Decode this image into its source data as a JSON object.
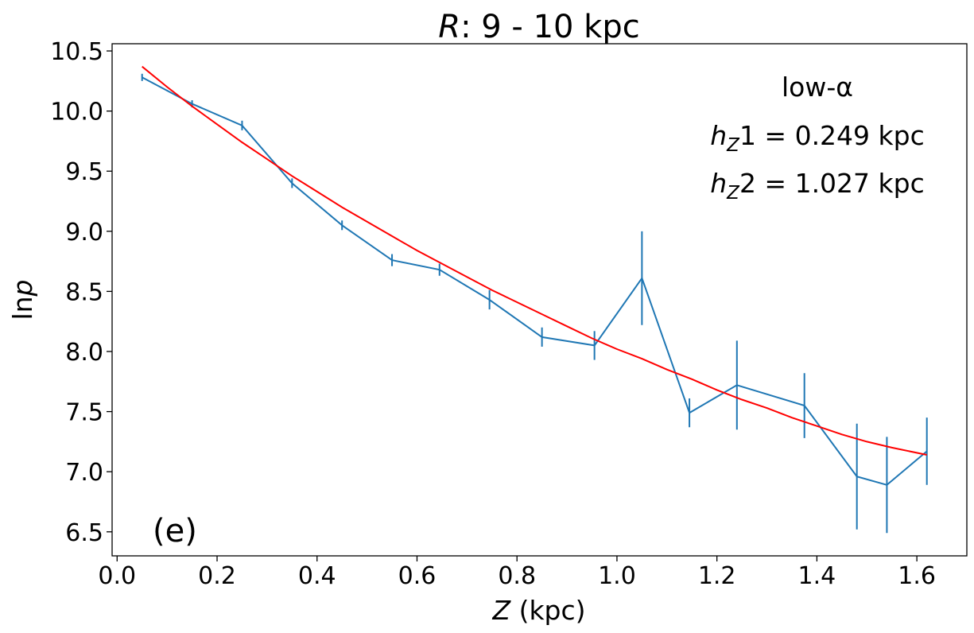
{
  "chart_data": {
    "type": "line",
    "title_var": "R",
    "title_rest": ": 9 - 10 kpc",
    "xlabel_var": "Z",
    "xlabel_rest": " (kpc)",
    "ylabel_prefix": "ln",
    "ylabel_var": "p",
    "xlim": [
      -0.01,
      1.7
    ],
    "ylim": [
      6.3,
      10.56
    ],
    "xticks": [
      0.0,
      0.2,
      0.4,
      0.6,
      0.8,
      1.0,
      1.2,
      1.4,
      1.6
    ],
    "xtick_labels": [
      "0.0",
      "0.2",
      "0.4",
      "0.6",
      "0.8",
      "1.0",
      "1.2",
      "1.4",
      "1.6"
    ],
    "yticks": [
      6.5,
      7.0,
      7.5,
      8.0,
      8.5,
      9.0,
      9.5,
      10.0,
      10.5
    ],
    "ytick_labels": [
      "6.5",
      "7.0",
      "7.5",
      "8.0",
      "8.5",
      "9.0",
      "9.5",
      "10.0",
      "10.5"
    ],
    "panel_label": "(e)",
    "annotation": {
      "population": "low-α",
      "h1_sym": "h",
      "h1_sub": "Z",
      "h1_num": "1",
      "h1_value": " = 0.249 kpc",
      "h2_sym": "h",
      "h2_sub": "Z",
      "h2_num": "2",
      "h2_value": " = 1.027 kpc"
    },
    "series": [
      {
        "name": "data",
        "color": "#1f77b4",
        "x": [
          0.05,
          0.15,
          0.25,
          0.35,
          0.45,
          0.55,
          0.645,
          0.745,
          0.85,
          0.955,
          1.05,
          1.145,
          1.24,
          1.375,
          1.48,
          1.54,
          1.62
        ],
        "y": [
          10.28,
          10.06,
          9.88,
          9.4,
          9.05,
          8.76,
          8.68,
          8.43,
          8.12,
          8.05,
          8.61,
          7.49,
          7.72,
          7.55,
          6.96,
          6.89,
          7.17
        ],
        "yerr": [
          0.03,
          0.03,
          0.04,
          0.04,
          0.04,
          0.05,
          0.05,
          0.08,
          0.08,
          0.12,
          0.39,
          0.12,
          0.37,
          0.27,
          0.44,
          0.4,
          0.28
        ]
      },
      {
        "name": "double-exponential fit",
        "color": "#ff0000",
        "x": [
          0.05,
          0.1,
          0.15,
          0.2,
          0.25,
          0.3,
          0.35,
          0.4,
          0.45,
          0.5,
          0.55,
          0.6,
          0.65,
          0.7,
          0.75,
          0.8,
          0.85,
          0.9,
          0.95,
          1.0,
          1.05,
          1.1,
          1.15,
          1.2,
          1.25,
          1.3,
          1.35,
          1.4,
          1.45,
          1.5,
          1.55,
          1.62
        ],
        "y": [
          10.37,
          10.2,
          10.04,
          9.89,
          9.74,
          9.6,
          9.46,
          9.33,
          9.2,
          9.08,
          8.96,
          8.84,
          8.73,
          8.62,
          8.51,
          8.41,
          8.31,
          8.21,
          8.11,
          8.02,
          7.94,
          7.85,
          7.77,
          7.68,
          7.6,
          7.53,
          7.45,
          7.38,
          7.31,
          7.25,
          7.2,
          7.14
        ]
      }
    ]
  }
}
